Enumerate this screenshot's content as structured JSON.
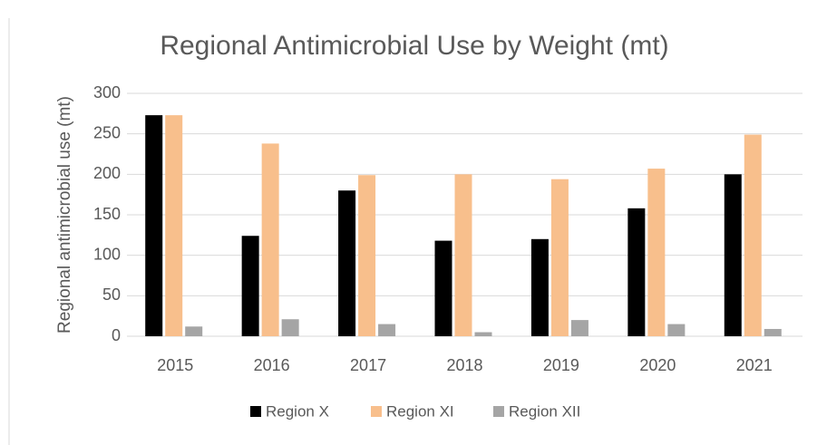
{
  "chart_data": {
    "type": "bar",
    "title": "Regional Antimicrobial Use by Weight (mt)",
    "y_label": "Regional antimicrobial use (mt)",
    "categories": [
      "2015",
      "2016",
      "2017",
      "2018",
      "2019",
      "2020",
      "2021"
    ],
    "series": [
      {
        "name": "Region X",
        "color": "#000000",
        "values": [
          273,
          124,
          180,
          118,
          120,
          158,
          200
        ]
      },
      {
        "name": "Region XI",
        "color": "#f8bf8c",
        "values": [
          273,
          238,
          199,
          200,
          194,
          207,
          249
        ]
      },
      {
        "name": "Region XII",
        "color": "#a5a5a5",
        "values": [
          12,
          21,
          15,
          5,
          20,
          15,
          9
        ]
      }
    ],
    "ylim": [
      0,
      300
    ],
    "yticks": [
      0,
      50,
      100,
      150,
      200,
      250,
      300
    ],
    "grid": true,
    "legend": "bottom"
  }
}
